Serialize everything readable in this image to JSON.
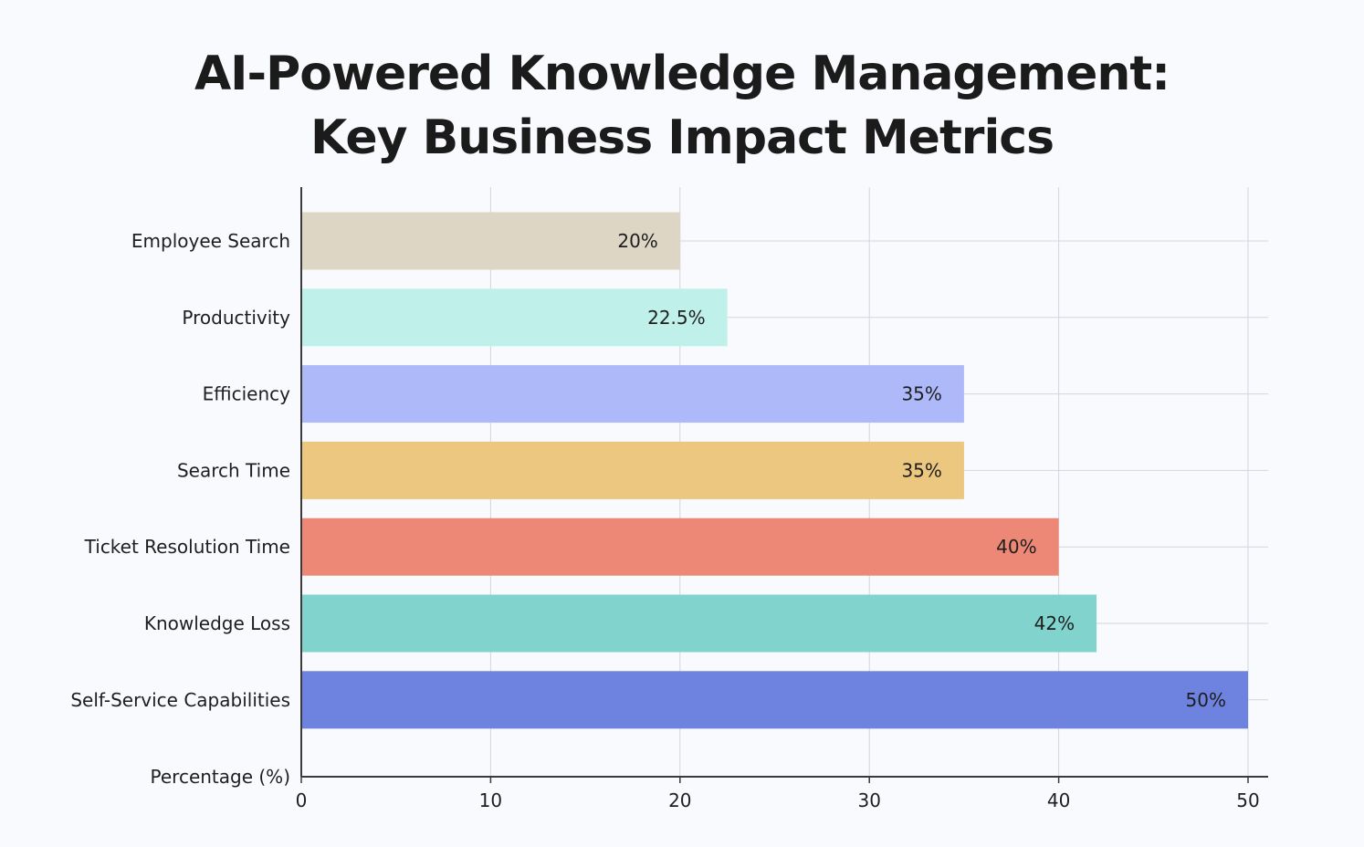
{
  "chart_data": {
    "type": "bar",
    "orientation": "horizontal",
    "title_lines": [
      "AI-Powered Knowledge Management:",
      "Key Business Impact Metrics"
    ],
    "categories": [
      "Employee Search",
      "Productivity",
      "Efficiency",
      "Search Time",
      "Ticket Resolution Time",
      "Knowledge Loss",
      "Self-Service Capabilities"
    ],
    "values": [
      20,
      22.5,
      35,
      35,
      40,
      42,
      50
    ],
    "data_labels": [
      "20%",
      "22.5%",
      "35%",
      "35%",
      "40%",
      "42%",
      "50%"
    ],
    "bar_colors": [
      "#ddd6c4",
      "#bff0ea",
      "#adb9f9",
      "#ebc77f",
      "#ed8877",
      "#81d4cd",
      "#6e82e0"
    ],
    "xlabel": "Percentage (%)",
    "ylabel": "",
    "xlim": [
      0,
      51
    ],
    "xticks": [
      0,
      10,
      20,
      30,
      40,
      50
    ],
    "xtick_labels": [
      "0",
      "10",
      "20",
      "30",
      "40",
      "50"
    ],
    "grid": true,
    "legend": false
  }
}
